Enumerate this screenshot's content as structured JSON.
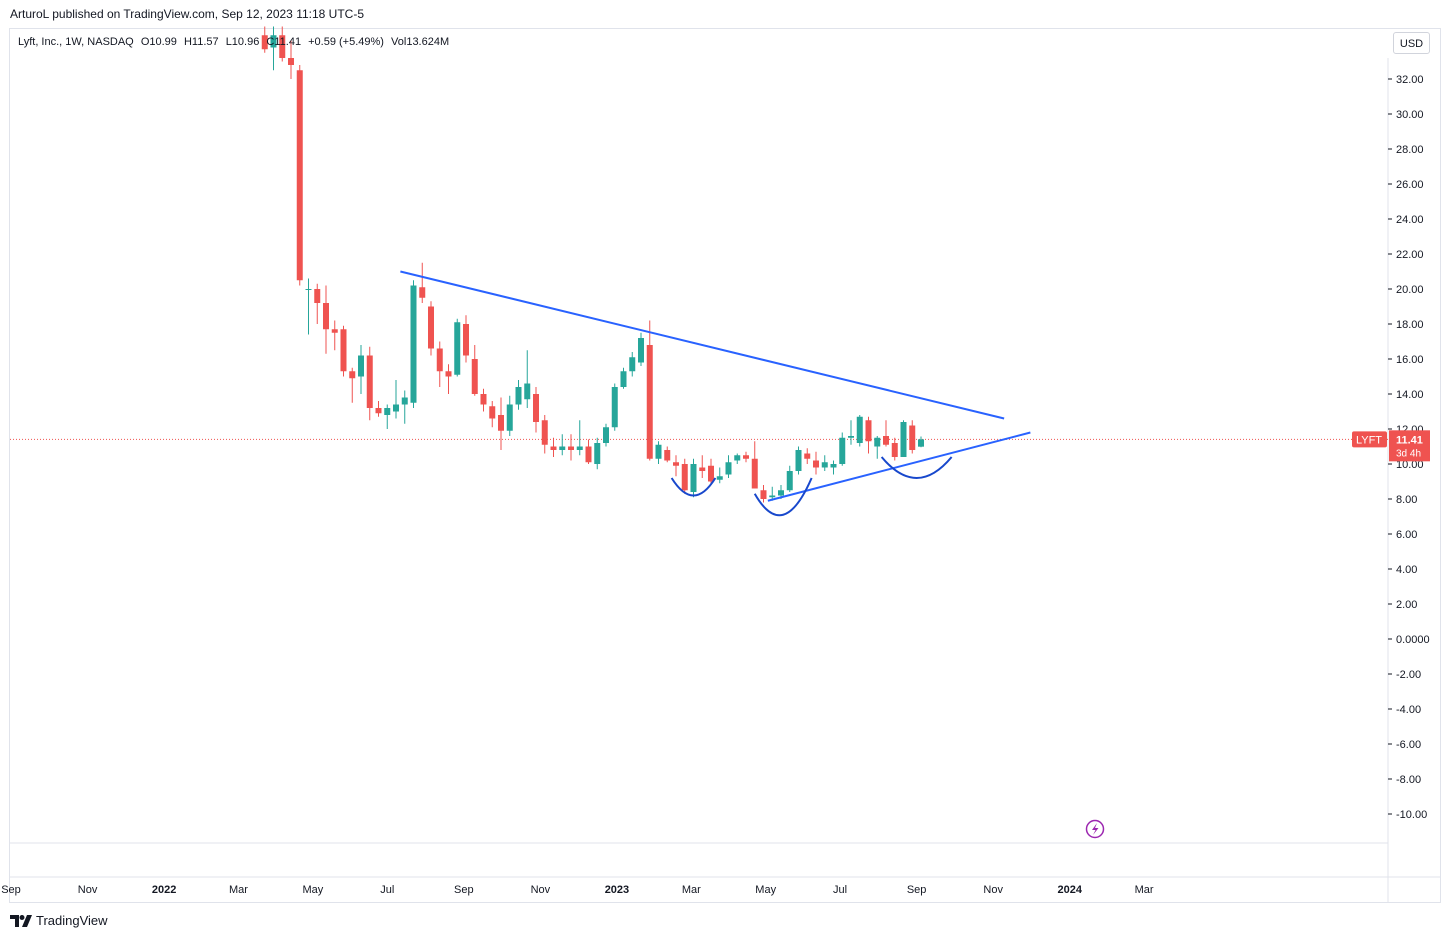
{
  "header": {
    "publisher_text": "ArturoL published on TradingView.com, Sep 12, 2023 11:18 UTC-5"
  },
  "legend": {
    "symbol_text": "Lyft, Inc., 1W, NASDAQ",
    "open": "O10.99",
    "high": "H11.57",
    "low": "L10.96",
    "close": "C11.41",
    "change": "+0.59 (+5.49%)",
    "volume": "Vol13.624M"
  },
  "currency_button": "USD",
  "price_label": {
    "symbol": "LYFT",
    "price": "11.41",
    "countdown": "3d 4h"
  },
  "footer": {
    "brand": "TradingView"
  },
  "colors": {
    "up": "#26a69a",
    "down": "#ef5350",
    "trendline": "#2962ff",
    "arc": "#1848cc",
    "price_line": "#ef5350",
    "marker": "#9c27b0"
  },
  "chart_data": {
    "type": "candlestick",
    "title": "Lyft, Inc., 1W, NASDAQ",
    "ylim": [
      -11.5,
      34
    ],
    "y_ticks": [
      "32.00",
      "30.00",
      "28.00",
      "26.00",
      "24.00",
      "22.00",
      "20.00",
      "18.00",
      "16.00",
      "14.00",
      "12.00",
      "10.00",
      "8.00",
      "6.00",
      "4.00",
      "2.00",
      "0.0000",
      "-2.00",
      "-4.00",
      "-6.00",
      "-8.00",
      "-10.00"
    ],
    "x_ticks": [
      {
        "label": "Sep",
        "week": 0,
        "bold": false
      },
      {
        "label": "Nov",
        "week": 8.75,
        "bold": false
      },
      {
        "label": "2022",
        "week": 17.5,
        "bold": true
      },
      {
        "label": "Mar",
        "week": 26,
        "bold": false
      },
      {
        "label": "May",
        "week": 34.5,
        "bold": false
      },
      {
        "label": "Jul",
        "week": 43,
        "bold": false
      },
      {
        "label": "Sep",
        "week": 51.75,
        "bold": false
      },
      {
        "label": "Nov",
        "week": 60.5,
        "bold": false
      },
      {
        "label": "2023",
        "week": 69.25,
        "bold": true
      },
      {
        "label": "Mar",
        "week": 77.75,
        "bold": false
      },
      {
        "label": "May",
        "week": 86.25,
        "bold": false
      },
      {
        "label": "Jul",
        "week": 94.75,
        "bold": false
      },
      {
        "label": "Sep",
        "week": 103.5,
        "bold": false
      },
      {
        "label": "Nov",
        "week": 112.25,
        "bold": false
      },
      {
        "label": "2024",
        "week": 121,
        "bold": true
      },
      {
        "label": "Mar",
        "week": 129.5,
        "bold": false
      }
    ],
    "last_price": 11.41,
    "candles": [
      {
        "w": 29,
        "o": 34.5,
        "h": 35.0,
        "l": 33.5,
        "c": 33.7
      },
      {
        "w": 30,
        "o": 33.8,
        "h": 35.0,
        "l": 32.5,
        "c": 34.5
      },
      {
        "w": 31,
        "o": 34.5,
        "h": 35.0,
        "l": 33.0,
        "c": 33.2
      },
      {
        "w": 32,
        "o": 33.2,
        "h": 34.2,
        "l": 32.0,
        "c": 32.8
      },
      {
        "w": 33,
        "o": 32.5,
        "h": 32.8,
        "l": 20.2,
        "c": 20.5
      },
      {
        "w": 34,
        "o": 20.0,
        "h": 20.6,
        "l": 17.4,
        "c": 20.0
      },
      {
        "w": 35,
        "o": 20.0,
        "h": 20.3,
        "l": 18.0,
        "c": 19.2
      },
      {
        "w": 36,
        "o": 19.2,
        "h": 20.2,
        "l": 16.3,
        "c": 17.7
      },
      {
        "w": 37,
        "o": 17.7,
        "h": 18.2,
        "l": 16.5,
        "c": 17.5
      },
      {
        "w": 38,
        "o": 17.7,
        "h": 17.9,
        "l": 15.0,
        "c": 15.3
      },
      {
        "w": 39,
        "o": 15.3,
        "h": 15.5,
        "l": 13.5,
        "c": 14.9
      },
      {
        "w": 40,
        "o": 15.0,
        "h": 16.8,
        "l": 14.0,
        "c": 16.2
      },
      {
        "w": 41,
        "o": 16.2,
        "h": 16.7,
        "l": 12.5,
        "c": 13.2
      },
      {
        "w": 42,
        "o": 13.2,
        "h": 13.6,
        "l": 12.7,
        "c": 12.9
      },
      {
        "w": 43,
        "o": 12.8,
        "h": 13.4,
        "l": 12.0,
        "c": 13.2
      },
      {
        "w": 44,
        "o": 13.0,
        "h": 14.8,
        "l": 12.6,
        "c": 13.4
      },
      {
        "w": 45,
        "o": 13.4,
        "h": 14.2,
        "l": 12.3,
        "c": 13.8
      },
      {
        "w": 46,
        "o": 13.5,
        "h": 20.5,
        "l": 13.2,
        "c": 20.2
      },
      {
        "w": 47,
        "o": 20.1,
        "h": 21.5,
        "l": 19.2,
        "c": 19.5
      },
      {
        "w": 48,
        "o": 19.0,
        "h": 19.3,
        "l": 16.2,
        "c": 16.6
      },
      {
        "w": 49,
        "o": 16.6,
        "h": 17.0,
        "l": 14.4,
        "c": 15.3
      },
      {
        "w": 50,
        "o": 15.3,
        "h": 15.7,
        "l": 14.0,
        "c": 15.0
      },
      {
        "w": 51,
        "o": 15.1,
        "h": 18.3,
        "l": 15.0,
        "c": 18.1
      },
      {
        "w": 52,
        "o": 18.0,
        "h": 18.5,
        "l": 15.8,
        "c": 16.2
      },
      {
        "w": 53,
        "o": 16.0,
        "h": 16.8,
        "l": 13.9,
        "c": 14.0
      },
      {
        "w": 54,
        "o": 14.0,
        "h": 14.3,
        "l": 13.0,
        "c": 13.4
      },
      {
        "w": 55,
        "o": 13.3,
        "h": 13.6,
        "l": 12.1,
        "c": 12.6
      },
      {
        "w": 56,
        "o": 12.8,
        "h": 13.8,
        "l": 10.8,
        "c": 11.9
      },
      {
        "w": 57,
        "o": 11.9,
        "h": 13.9,
        "l": 11.6,
        "c": 13.4
      },
      {
        "w": 58,
        "o": 13.4,
        "h": 14.8,
        "l": 13.1,
        "c": 14.4
      },
      {
        "w": 59,
        "o": 13.7,
        "h": 16.5,
        "l": 13.2,
        "c": 14.6
      },
      {
        "w": 60,
        "o": 14.0,
        "h": 14.4,
        "l": 11.8,
        "c": 12.4
      },
      {
        "w": 61,
        "o": 12.5,
        "h": 12.8,
        "l": 10.6,
        "c": 11.1
      },
      {
        "w": 62,
        "o": 11.0,
        "h": 11.5,
        "l": 10.4,
        "c": 10.8
      },
      {
        "w": 63,
        "o": 10.8,
        "h": 11.7,
        "l": 10.5,
        "c": 11.0
      },
      {
        "w": 64,
        "o": 11.0,
        "h": 11.7,
        "l": 10.2,
        "c": 10.8
      },
      {
        "w": 65,
        "o": 10.8,
        "h": 12.5,
        "l": 10.5,
        "c": 11.0
      },
      {
        "w": 66,
        "o": 11.0,
        "h": 11.4,
        "l": 10.0,
        "c": 10.1
      },
      {
        "w": 67,
        "o": 10.0,
        "h": 11.5,
        "l": 9.7,
        "c": 11.2
      },
      {
        "w": 68,
        "o": 11.2,
        "h": 12.3,
        "l": 11.0,
        "c": 12.1
      },
      {
        "w": 69,
        "o": 12.1,
        "h": 14.6,
        "l": 11.9,
        "c": 14.4
      },
      {
        "w": 70,
        "o": 14.4,
        "h": 15.5,
        "l": 14.3,
        "c": 15.3
      },
      {
        "w": 71,
        "o": 15.3,
        "h": 16.4,
        "l": 15.0,
        "c": 16.1
      },
      {
        "w": 72,
        "o": 15.8,
        "h": 17.5,
        "l": 15.6,
        "c": 17.2
      },
      {
        "w": 73,
        "o": 16.8,
        "h": 18.2,
        "l": 10.2,
        "c": 10.3
      },
      {
        "w": 74,
        "o": 10.3,
        "h": 11.3,
        "l": 10.0,
        "c": 11.1
      },
      {
        "w": 75,
        "o": 10.8,
        "h": 11.0,
        "l": 10.1,
        "c": 10.2
      },
      {
        "w": 76,
        "o": 10.1,
        "h": 10.5,
        "l": 9.3,
        "c": 9.9
      },
      {
        "w": 77,
        "o": 10.0,
        "h": 10.3,
        "l": 8.3,
        "c": 8.5
      },
      {
        "w": 78,
        "o": 8.4,
        "h": 10.3,
        "l": 8.1,
        "c": 10.0
      },
      {
        "w": 79,
        "o": 9.8,
        "h": 10.5,
        "l": 9.2,
        "c": 9.6
      },
      {
        "w": 80,
        "o": 9.9,
        "h": 10.3,
        "l": 8.8,
        "c": 9.0
      },
      {
        "w": 81,
        "o": 9.1,
        "h": 9.8,
        "l": 8.9,
        "c": 9.3
      },
      {
        "w": 82,
        "o": 9.4,
        "h": 10.5,
        "l": 9.2,
        "c": 10.1
      },
      {
        "w": 83,
        "o": 10.2,
        "h": 10.6,
        "l": 10.0,
        "c": 10.5
      },
      {
        "w": 84,
        "o": 10.5,
        "h": 10.7,
        "l": 10.1,
        "c": 10.3
      },
      {
        "w": 85,
        "o": 10.3,
        "h": 11.3,
        "l": 8.6,
        "c": 8.6
      },
      {
        "w": 86,
        "o": 8.5,
        "h": 8.8,
        "l": 7.8,
        "c": 8.0
      },
      {
        "w": 87,
        "o": 8.1,
        "h": 8.7,
        "l": 7.9,
        "c": 8.2
      },
      {
        "w": 88,
        "o": 8.2,
        "h": 8.8,
        "l": 8.0,
        "c": 8.5
      },
      {
        "w": 89,
        "o": 8.5,
        "h": 9.9,
        "l": 8.4,
        "c": 9.6
      },
      {
        "w": 90,
        "o": 9.6,
        "h": 11.0,
        "l": 9.4,
        "c": 10.8
      },
      {
        "w": 91,
        "o": 10.6,
        "h": 10.9,
        "l": 10.0,
        "c": 10.3
      },
      {
        "w": 92,
        "o": 10.2,
        "h": 10.7,
        "l": 9.4,
        "c": 9.8
      },
      {
        "w": 93,
        "o": 9.8,
        "h": 10.5,
        "l": 9.6,
        "c": 10.1
      },
      {
        "w": 94,
        "o": 9.8,
        "h": 10.2,
        "l": 9.4,
        "c": 10.0
      },
      {
        "w": 95,
        "o": 10.0,
        "h": 11.8,
        "l": 9.9,
        "c": 11.5
      },
      {
        "w": 96,
        "o": 11.5,
        "h": 12.5,
        "l": 11.1,
        "c": 11.6
      },
      {
        "w": 97,
        "o": 11.2,
        "h": 12.8,
        "l": 11.0,
        "c": 12.7
      },
      {
        "w": 98,
        "o": 12.5,
        "h": 12.7,
        "l": 10.6,
        "c": 11.3
      },
      {
        "w": 99,
        "o": 11.0,
        "h": 11.6,
        "l": 10.3,
        "c": 11.5
      },
      {
        "w": 100,
        "o": 11.6,
        "h": 12.5,
        "l": 11.0,
        "c": 11.1
      },
      {
        "w": 101,
        "o": 11.2,
        "h": 11.5,
        "l": 10.2,
        "c": 10.4
      },
      {
        "w": 102,
        "o": 10.4,
        "h": 12.5,
        "l": 10.4,
        "c": 12.4
      },
      {
        "w": 103,
        "o": 12.2,
        "h": 12.5,
        "l": 10.6,
        "c": 10.8
      },
      {
        "w": 104,
        "o": 10.99,
        "h": 11.57,
        "l": 10.96,
        "c": 11.41
      }
    ],
    "drawings": {
      "descending_trendline": {
        "from": {
          "w": 44.5,
          "price": 21.0
        },
        "to": {
          "w": 113.5,
          "price": 12.6
        }
      },
      "ascending_trendline": {
        "from": {
          "w": 86.5,
          "price": 7.9
        },
        "to": {
          "w": 116.5,
          "price": 11.8
        }
      },
      "cup_arcs": [
        {
          "from": {
            "w": 75.5,
            "price": 9.2
          },
          "to": {
            "w": 80.5,
            "price": 9.2
          },
          "bottom": 8.2
        },
        {
          "from": {
            "w": 85.0,
            "price": 8.3
          },
          "to": {
            "w": 91.5,
            "price": 9.2
          },
          "bottom": 7.1
        },
        {
          "from": {
            "w": 99.5,
            "price": 10.4
          },
          "to": {
            "w": 107.5,
            "price": 10.4
          },
          "bottom": 9.2
        }
      ]
    }
  }
}
